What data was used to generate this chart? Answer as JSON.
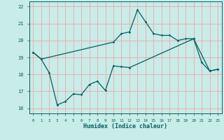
{
  "xlabel": "Humidex (Indice chaleur)",
  "bg_color": "#c8ece8",
  "grid_color": "#e8b0b0",
  "line_color": "#006060",
  "xlim": [
    -0.5,
    23.5
  ],
  "ylim": [
    15.7,
    22.3
  ],
  "xticks": [
    0,
    1,
    2,
    3,
    4,
    5,
    6,
    7,
    8,
    9,
    10,
    11,
    12,
    13,
    14,
    15,
    16,
    17,
    18,
    19,
    20,
    21,
    22,
    23
  ],
  "yticks": [
    16,
    17,
    18,
    19,
    20,
    21,
    22
  ],
  "upper_x": [
    0,
    1,
    10,
    11,
    12,
    13,
    14,
    15,
    16,
    17,
    18,
    19,
    20,
    21,
    22,
    23
  ],
  "upper_y": [
    19.3,
    18.9,
    19.9,
    20.4,
    20.5,
    21.8,
    21.1,
    20.4,
    20.3,
    20.3,
    20.0,
    20.1,
    20.1,
    18.7,
    18.2,
    18.3
  ],
  "lower_x": [
    0,
    1,
    2,
    3,
    4,
    5,
    6,
    7,
    8,
    9,
    10,
    11,
    12,
    20,
    22,
    23
  ],
  "lower_y": [
    19.3,
    18.9,
    18.1,
    16.2,
    16.4,
    16.85,
    16.8,
    17.4,
    17.6,
    17.05,
    18.5,
    18.45,
    18.4,
    20.1,
    18.2,
    18.3
  ]
}
